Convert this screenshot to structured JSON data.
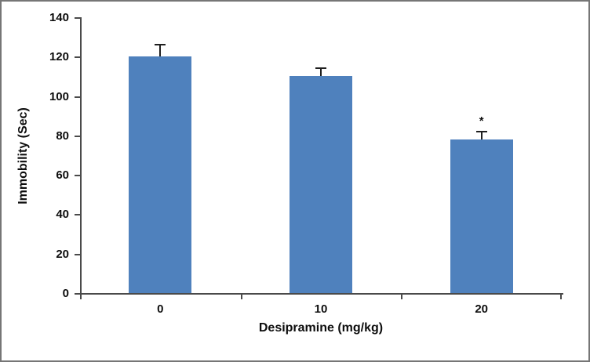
{
  "chart_data": {
    "type": "bar",
    "title": "",
    "categories": [
      "0",
      "10",
      "20"
    ],
    "values": [
      120,
      110,
      78
    ],
    "errors": [
      6,
      4,
      4
    ],
    "annotations": [
      {
        "category_index": 2,
        "text": "*"
      }
    ],
    "xlabel": "Desipramine (mg/kg)",
    "ylabel": "Immobility (Sec)",
    "ylim": [
      0,
      140
    ],
    "yticks": [
      0,
      20,
      40,
      60,
      80,
      100,
      120,
      140
    ],
    "bar_color": "#4F81BD",
    "grid": false,
    "legend": "none"
  },
  "frame": {
    "border_color": "#767676",
    "background": "#ffffff"
  }
}
